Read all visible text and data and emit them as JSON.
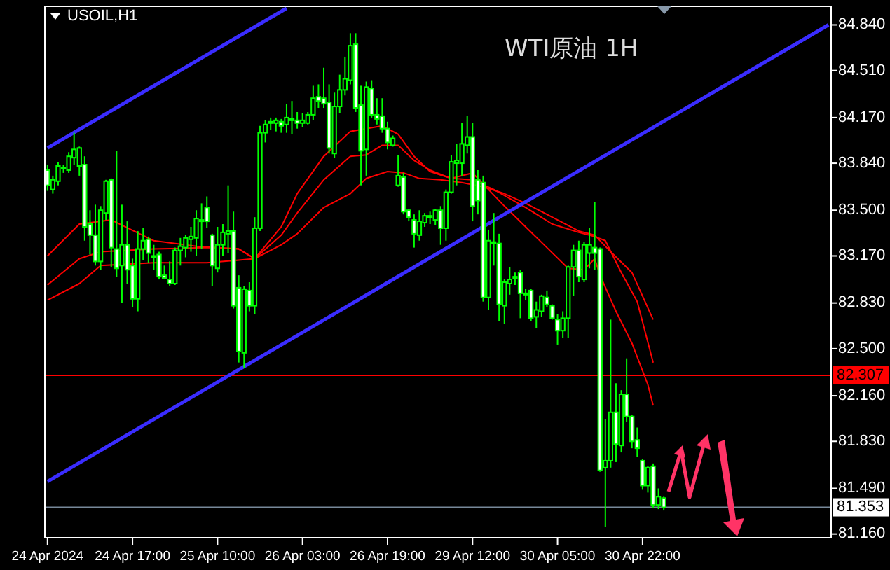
{
  "chart_data": {
    "type": "candlestick",
    "title": "USOIL,H1",
    "annotations": [
      "WTI原油 1H"
    ],
    "color": "#00ff00",
    "categories": [
      "24 Apr 2024",
      null,
      null,
      null,
      null,
      null,
      null,
      null,
      null,
      null,
      null,
      null,
      null,
      null,
      null,
      null,
      "24 Apr 17:00",
      null,
      null,
      null,
      null,
      null,
      null,
      null,
      null,
      null,
      null,
      null,
      null,
      null,
      null,
      null,
      "25 Apr 10:00",
      null,
      null,
      null,
      null,
      null,
      null,
      null,
      null,
      null,
      null,
      null,
      null,
      null,
      null,
      null,
      "26 Apr 03:00",
      null,
      null,
      null,
      null,
      null,
      null,
      null,
      null,
      null,
      null,
      null,
      null,
      null,
      null,
      null,
      "26 Apr 19:00",
      null,
      null,
      null,
      null,
      null,
      null,
      null,
      null,
      null,
      null,
      null,
      null,
      null,
      null,
      null,
      "29 Apr 12:00",
      null,
      null,
      null,
      null,
      null,
      null,
      null,
      null,
      null,
      null,
      null,
      null,
      null,
      null,
      null,
      "30 Apr 05:00",
      null,
      null,
      null,
      null,
      null,
      null,
      null,
      null,
      null,
      null,
      null,
      null,
      null,
      null,
      null,
      "30 Apr 22:00",
      null,
      null,
      null,
      null,
      null,
      null,
      null,
      null,
      null,
      null,
      null,
      null,
      null,
      null,
      null,
      null,
      null,
      null,
      null,
      null,
      null,
      null,
      null,
      null,
      null,
      null,
      null,
      null,
      null,
      null,
      null,
      null,
      null,
      null,
      null
    ],
    "ohlc": [
      [
        83.79,
        83.83,
        83.64,
        83.68
      ],
      [
        83.65,
        83.75,
        83.62,
        83.72
      ],
      [
        83.71,
        83.85,
        83.68,
        83.82
      ],
      [
        83.8,
        83.83,
        83.77,
        83.81
      ],
      [
        83.79,
        83.92,
        83.77,
        83.89
      ],
      [
        83.88,
        84.06,
        83.83,
        83.94
      ],
      [
        83.82,
        83.96,
        83.75,
        83.95
      ],
      [
        83.83,
        83.89,
        83.28,
        83.38
      ],
      [
        83.4,
        83.5,
        83.18,
        83.32
      ],
      [
        83.32,
        83.54,
        83.1,
        83.13
      ],
      [
        83.13,
        83.53,
        83.07,
        83.5
      ],
      [
        83.48,
        83.72,
        83.43,
        83.71
      ],
      [
        83.72,
        83.73,
        83.09,
        83.23
      ],
      [
        83.22,
        83.93,
        83.02,
        83.08
      ],
      [
        83.1,
        83.54,
        82.83,
        83.25
      ],
      [
        83.25,
        83.42,
        82.97,
        83.07
      ],
      [
        83.1,
        83.15,
        82.8,
        82.86
      ],
      [
        82.86,
        83.35,
        82.77,
        83.22
      ],
      [
        83.22,
        83.37,
        83.14,
        83.28
      ],
      [
        83.29,
        83.31,
        83.12,
        83.19
      ],
      [
        83.17,
        83.25,
        83.07,
        83.16
      ],
      [
        83.18,
        83.2,
        83.0,
        83.02
      ],
      [
        83.03,
        83.1,
        83.0,
        83.01
      ],
      [
        83.0,
        83.13,
        82.95,
        82.97
      ],
      [
        82.97,
        83.23,
        82.96,
        83.21
      ],
      [
        83.21,
        83.3,
        83.1,
        83.24
      ],
      [
        83.23,
        83.32,
        83.16,
        83.3
      ],
      [
        83.29,
        83.38,
        83.2,
        83.31
      ],
      [
        83.3,
        83.5,
        83.17,
        83.44
      ],
      [
        83.43,
        83.55,
        83.22,
        83.42
      ],
      [
        83.52,
        83.6,
        83.37,
        83.42
      ],
      [
        83.32,
        83.33,
        82.95,
        83.1
      ],
      [
        83.08,
        83.38,
        83.05,
        83.25
      ],
      [
        83.25,
        83.4,
        83.17,
        83.34
      ],
      [
        83.33,
        83.68,
        83.19,
        83.35
      ],
      [
        83.35,
        83.49,
        82.79,
        82.81
      ],
      [
        82.94,
        83.03,
        82.4,
        82.48
      ],
      [
        82.47,
        82.95,
        82.36,
        82.93
      ],
      [
        82.92,
        82.98,
        82.77,
        82.81
      ],
      [
        82.81,
        83.45,
        82.75,
        83.37
      ],
      [
        83.37,
        84.11,
        83.35,
        84.06
      ],
      [
        84.06,
        84.15,
        83.99,
        84.12
      ],
      [
        84.13,
        84.17,
        84.08,
        84.14
      ],
      [
        84.13,
        84.17,
        84.07,
        84.15
      ],
      [
        84.14,
        84.16,
        84.06,
        84.11
      ],
      [
        84.12,
        84.27,
        84.06,
        84.17
      ],
      [
        84.16,
        84.29,
        84.05,
        84.15
      ],
      [
        84.15,
        84.21,
        84.09,
        84.13
      ],
      [
        84.13,
        84.2,
        84.1,
        84.15
      ],
      [
        84.13,
        84.21,
        84.12,
        84.19
      ],
      [
        84.19,
        84.4,
        84.15,
        84.31
      ],
      [
        84.32,
        84.41,
        84.24,
        84.29
      ],
      [
        84.31,
        84.53,
        84.24,
        84.27
      ],
      [
        84.28,
        84.41,
        83.91,
        83.95
      ],
      [
        83.91,
        84.35,
        83.88,
        84.25
      ],
      [
        84.25,
        84.48,
        84.2,
        84.37
      ],
      [
        84.37,
        84.61,
        84.33,
        84.45
      ],
      [
        84.44,
        84.78,
        84.41,
        84.69
      ],
      [
        84.7,
        84.78,
        84.21,
        84.24
      ],
      [
        84.26,
        84.4,
        83.68,
        83.93
      ],
      [
        83.94,
        84.43,
        83.75,
        84.39
      ],
      [
        84.38,
        84.44,
        84.17,
        84.19
      ],
      [
        84.19,
        84.31,
        84.12,
        84.16
      ],
      [
        84.18,
        84.31,
        84.06,
        84.09
      ],
      [
        84.09,
        84.14,
        83.94,
        83.99
      ],
      [
        83.97,
        84.04,
        83.96,
        84.02
      ],
      [
        83.68,
        83.9,
        83.67,
        83.75
      ],
      [
        83.74,
        83.77,
        83.47,
        83.49
      ],
      [
        83.5,
        83.51,
        83.42,
        83.45
      ],
      [
        83.43,
        83.47,
        83.23,
        83.33
      ],
      [
        83.32,
        83.5,
        83.28,
        83.42
      ],
      [
        83.41,
        83.48,
        83.38,
        83.46
      ],
      [
        83.46,
        83.49,
        83.4,
        83.45
      ],
      [
        83.43,
        83.51,
        83.39,
        83.5
      ],
      [
        83.5,
        83.53,
        83.25,
        83.37
      ],
      [
        83.37,
        83.65,
        83.28,
        83.63
      ],
      [
        83.63,
        83.9,
        83.62,
        83.85
      ],
      [
        83.84,
        83.98,
        83.68,
        83.86
      ],
      [
        83.84,
        84.13,
        83.75,
        83.98
      ],
      [
        83.97,
        84.18,
        83.91,
        84.03
      ],
      [
        84.03,
        84.13,
        83.42,
        83.53
      ],
      [
        83.72,
        83.79,
        83.47,
        83.57
      ],
      [
        83.7,
        83.75,
        82.84,
        82.87
      ],
      [
        82.87,
        83.36,
        82.78,
        83.28
      ],
      [
        83.27,
        83.48,
        83.1,
        83.26
      ],
      [
        83.26,
        83.33,
        82.7,
        82.82
      ],
      [
        82.81,
        83.0,
        82.68,
        82.98
      ],
      [
        82.97,
        83.09,
        82.89,
        83.0
      ],
      [
        83.01,
        83.05,
        82.96,
        83.02
      ],
      [
        83.05,
        83.07,
        82.72,
        82.9
      ],
      [
        82.9,
        82.93,
        82.85,
        82.89
      ],
      [
        82.92,
        82.93,
        82.7,
        82.72
      ],
      [
        82.73,
        82.84,
        82.65,
        82.78
      ],
      [
        82.77,
        82.89,
        82.73,
        82.88
      ],
      [
        82.87,
        82.92,
        82.8,
        82.82
      ],
      [
        82.81,
        82.82,
        82.71,
        82.72
      ],
      [
        82.71,
        82.75,
        82.53,
        82.63
      ],
      [
        82.63,
        82.77,
        82.58,
        82.72
      ],
      [
        82.72,
        83.1,
        82.58,
        83.09
      ],
      [
        83.09,
        83.25,
        82.88,
        83.21
      ],
      [
        83.21,
        83.28,
        82.98,
        83.02
      ],
      [
        83.0,
        83.27,
        82.98,
        83.25
      ],
      [
        83.19,
        83.37,
        83.08,
        83.25
      ],
      [
        83.23,
        83.56,
        83.07,
        83.19
      ],
      [
        83.22,
        83.23,
        81.61,
        81.62
      ],
      [
        81.64,
        81.99,
        81.21,
        81.69
      ],
      [
        81.69,
        82.71,
        81.64,
        82.04
      ],
      [
        82.04,
        82.25,
        81.68,
        81.81
      ],
      [
        81.8,
        82.2,
        81.75,
        82.17
      ],
      [
        82.17,
        82.43,
        81.97,
        82.01
      ],
      [
        82.01,
        82.02,
        81.78,
        81.83
      ],
      [
        81.84,
        81.93,
        81.72,
        81.78
      ],
      [
        81.69,
        81.7,
        81.48,
        81.51
      ],
      [
        81.51,
        81.65,
        81.46,
        81.64
      ],
      [
        81.65,
        81.67,
        81.35,
        81.37
      ],
      [
        81.37,
        81.49,
        81.34,
        81.43
      ],
      [
        81.42,
        81.43,
        81.33,
        81.353
      ],
      null,
      null,
      null,
      null,
      null,
      null,
      null,
      null,
      null,
      null,
      null,
      null,
      null,
      null,
      null,
      null,
      null,
      null,
      null,
      null,
      null,
      null,
      null,
      null,
      null,
      null,
      null,
      null,
      null,
      null,
      null
    ],
    "series": [
      {
        "type": "line",
        "color": "#ff0000",
        "values": [
          83.17,
          null,
          null,
          null,
          null,
          null,
          83.4,
          null,
          null,
          null,
          null,
          null,
          83.43,
          null,
          null,
          null,
          null,
          null,
          null,
          null,
          83.28,
          null,
          null,
          null,
          null,
          null,
          null,
          null,
          83.24,
          null,
          null,
          null,
          null,
          null,
          null,
          null,
          83.22,
          null,
          null,
          83.15,
          null,
          null,
          null,
          null,
          83.38,
          null,
          null,
          83.62,
          null,
          null,
          null,
          null,
          83.89,
          null,
          null,
          null,
          null,
          84.07,
          null,
          null,
          null,
          null,
          null,
          84.11,
          null,
          null,
          84.05,
          null,
          null,
          83.89,
          null,
          null,
          83.78,
          null,
          null,
          null,
          83.73,
          null,
          null,
          null,
          83.77,
          null,
          null,
          83.65,
          null,
          null,
          83.53,
          null,
          null,
          null,
          83.38,
          null,
          null,
          null,
          83.23,
          null,
          null,
          null,
          83.08,
          null,
          null,
          83.07,
          null,
          83.15,
          83.03,
          null,
          null,
          82.77,
          null,
          null,
          82.54,
          null,
          null,
          82.24,
          82.09,
          null,
          null,
          null,
          null,
          null,
          null,
          null,
          null,
          null,
          null,
          null,
          null,
          null,
          null,
          null,
          null,
          null,
          null,
          null,
          null,
          null,
          null,
          null,
          null,
          null,
          null,
          null,
          null,
          null,
          null,
          null,
          null,
          null
        ]
      },
      {
        "type": "line",
        "color": "#ff0000",
        "values": [
          82.96,
          null,
          null,
          null,
          null,
          null,
          83.15,
          null,
          null,
          null,
          83.2,
          null,
          null,
          null,
          null,
          null,
          null,
          null,
          null,
          null,
          83.22,
          null,
          null,
          null,
          null,
          null,
          null,
          null,
          null,
          null,
          83.23,
          null,
          null,
          null,
          null,
          null,
          83.22,
          null,
          null,
          83.15,
          null,
          null,
          null,
          null,
          83.32,
          null,
          null,
          83.48,
          null,
          null,
          null,
          null,
          83.72,
          null,
          null,
          null,
          null,
          83.89,
          null,
          null,
          83.9,
          null,
          null,
          83.97,
          null,
          null,
          83.97,
          null,
          null,
          83.86,
          null,
          null,
          83.79,
          null,
          null,
          null,
          83.73,
          null,
          null,
          null,
          83.72,
          null,
          null,
          null,
          83.65,
          null,
          null,
          null,
          null,
          null,
          83.52,
          null,
          null,
          null,
          null,
          83.4,
          null,
          null,
          null,
          null,
          83.34,
          null,
          null,
          83.31,
          null,
          83.28,
          null,
          null,
          83.05,
          null,
          null,
          82.84,
          null,
          null,
          82.4,
          null,
          null,
          null,
          null,
          null,
          null,
          null,
          null,
          null,
          null,
          null,
          null,
          null,
          null,
          null,
          null,
          null,
          null,
          null,
          null,
          null,
          null,
          null,
          null,
          null,
          null,
          null,
          null,
          null,
          null,
          null,
          null,
          null
        ]
      },
      {
        "type": "line",
        "color": "#ff0000",
        "values": [
          82.85,
          null,
          null,
          null,
          null,
          null,
          82.97,
          null,
          null,
          null,
          83.1,
          null,
          null,
          null,
          null,
          null,
          null,
          null,
          null,
          null,
          83.12,
          null,
          null,
          null,
          null,
          null,
          null,
          null,
          null,
          null,
          83.12,
          null,
          null,
          null,
          null,
          null,
          83.14,
          null,
          null,
          83.15,
          null,
          null,
          null,
          null,
          83.25,
          null,
          null,
          83.33,
          null,
          null,
          null,
          null,
          83.52,
          null,
          null,
          null,
          null,
          83.62,
          null,
          null,
          83.73,
          null,
          null,
          null,
          83.78,
          null,
          null,
          83.77,
          null,
          null,
          83.73,
          null,
          null,
          null,
          83.72,
          null,
          null,
          null,
          83.7,
          null,
          null,
          null,
          83.67,
          null,
          null,
          null,
          83.62,
          null,
          null,
          null,
          83.55,
          null,
          null,
          null,
          null,
          83.45,
          null,
          null,
          null,
          null,
          83.35,
          null,
          null,
          83.32,
          null,
          null,
          83.2,
          null,
          null,
          null,
          83.05,
          null,
          null,
          null,
          82.71,
          null,
          null,
          null,
          null,
          null,
          null,
          null,
          null,
          null,
          null,
          null,
          null,
          null,
          null,
          null,
          null,
          null,
          null,
          null,
          null,
          null,
          null,
          null,
          null,
          null,
          null,
          null,
          null,
          null,
          null,
          null,
          null,
          null
        ]
      },
      {
        "type": "line",
        "color": "#3a2cff",
        "values": [
          83.95,
          null,
          null,
          null,
          null,
          null,
          null,
          null,
          null,
          null,
          null,
          null,
          null,
          null,
          null,
          null,
          null,
          null,
          null,
          null,
          null,
          null,
          null,
          null,
          null,
          null,
          null,
          null,
          null,
          null,
          null,
          null,
          null,
          null,
          null,
          null,
          null,
          null,
          null,
          null,
          null,
          null,
          null,
          null,
          null,
          84.96,
          null,
          null,
          null,
          null,
          null,
          null,
          null,
          null,
          null,
          null,
          null,
          null,
          null,
          null,
          null,
          null,
          null,
          null,
          null,
          null,
          null,
          null,
          null,
          null,
          null,
          null,
          null,
          null,
          null,
          null,
          null,
          null,
          null,
          null,
          null,
          null,
          null,
          null,
          null,
          null,
          null,
          null,
          null,
          null,
          null,
          null,
          null,
          null,
          null,
          null,
          null,
          null,
          null,
          null,
          null,
          null,
          null,
          null,
          null,
          null,
          null,
          null,
          null,
          null,
          null,
          null,
          null,
          null,
          null,
          null,
          null,
          null,
          null,
          null,
          null,
          null,
          null,
          null,
          null,
          null,
          null,
          null,
          null,
          null,
          null,
          null,
          null,
          null,
          null,
          null,
          null,
          null,
          null,
          null,
          null,
          null,
          null,
          null,
          null,
          null,
          null,
          null
        ]
      },
      {
        "type": "line",
        "color": "#3a2cff",
        "values": [
          81.54,
          null,
          null,
          null,
          null,
          null,
          null,
          null,
          null,
          null,
          null,
          null,
          null,
          null,
          null,
          null,
          null,
          null,
          null,
          null,
          null,
          null,
          null,
          null,
          null,
          null,
          null,
          null,
          null,
          null,
          null,
          null,
          null,
          null,
          null,
          null,
          null,
          null,
          null,
          null,
          null,
          null,
          null,
          null,
          null,
          null,
          null,
          null,
          null,
          null,
          null,
          null,
          null,
          null,
          null,
          null,
          null,
          null,
          null,
          null,
          null,
          null,
          null,
          null,
          null,
          null,
          null,
          null,
          null,
          null,
          null,
          null,
          null,
          null,
          null,
          null,
          null,
          null,
          null,
          null,
          null,
          null,
          null,
          null,
          null,
          null,
          null,
          null,
          null,
          null,
          null,
          null,
          null,
          null,
          null,
          null,
          null,
          null,
          null,
          null,
          null,
          null,
          null,
          null,
          null,
          null,
          null,
          null,
          null,
          null,
          null,
          null,
          null,
          null,
          null,
          null,
          null,
          null,
          null,
          null,
          null,
          null,
          null,
          null,
          null,
          null,
          null,
          null,
          null,
          null,
          null,
          null,
          null,
          null,
          null,
          null,
          null,
          null,
          null,
          null,
          null,
          null,
          null,
          null,
          null,
          null,
          null,
          84.84
        ]
      }
    ],
    "ref_lines": [
      {
        "axis": "y",
        "value": 82.307,
        "label": "82.307",
        "color": "#ff0000"
      },
      {
        "axis": "y",
        "value": 81.353,
        "label": "81.353",
        "color": "#778899"
      }
    ],
    "ylim": [
      81.133,
      84.974
    ],
    "yticks": [
      {
        "value": 84.84,
        "label": "84.840"
      },
      {
        "value": 84.51,
        "label": "84.510"
      },
      {
        "value": 84.17,
        "label": "84.170"
      },
      {
        "value": 83.84,
        "label": "83.840"
      },
      {
        "value": 83.5,
        "label": "83.500"
      },
      {
        "value": 83.17,
        "label": "83.170"
      },
      {
        "value": 82.83,
        "label": "82.830"
      },
      {
        "value": 82.5,
        "label": "82.500"
      },
      {
        "value": 82.16,
        "label": "82.160"
      },
      {
        "value": 81.83,
        "label": "81.830"
      },
      {
        "value": 81.49,
        "label": "81.490"
      },
      {
        "value": 81.16,
        "label": "81.160"
      }
    ]
  }
}
